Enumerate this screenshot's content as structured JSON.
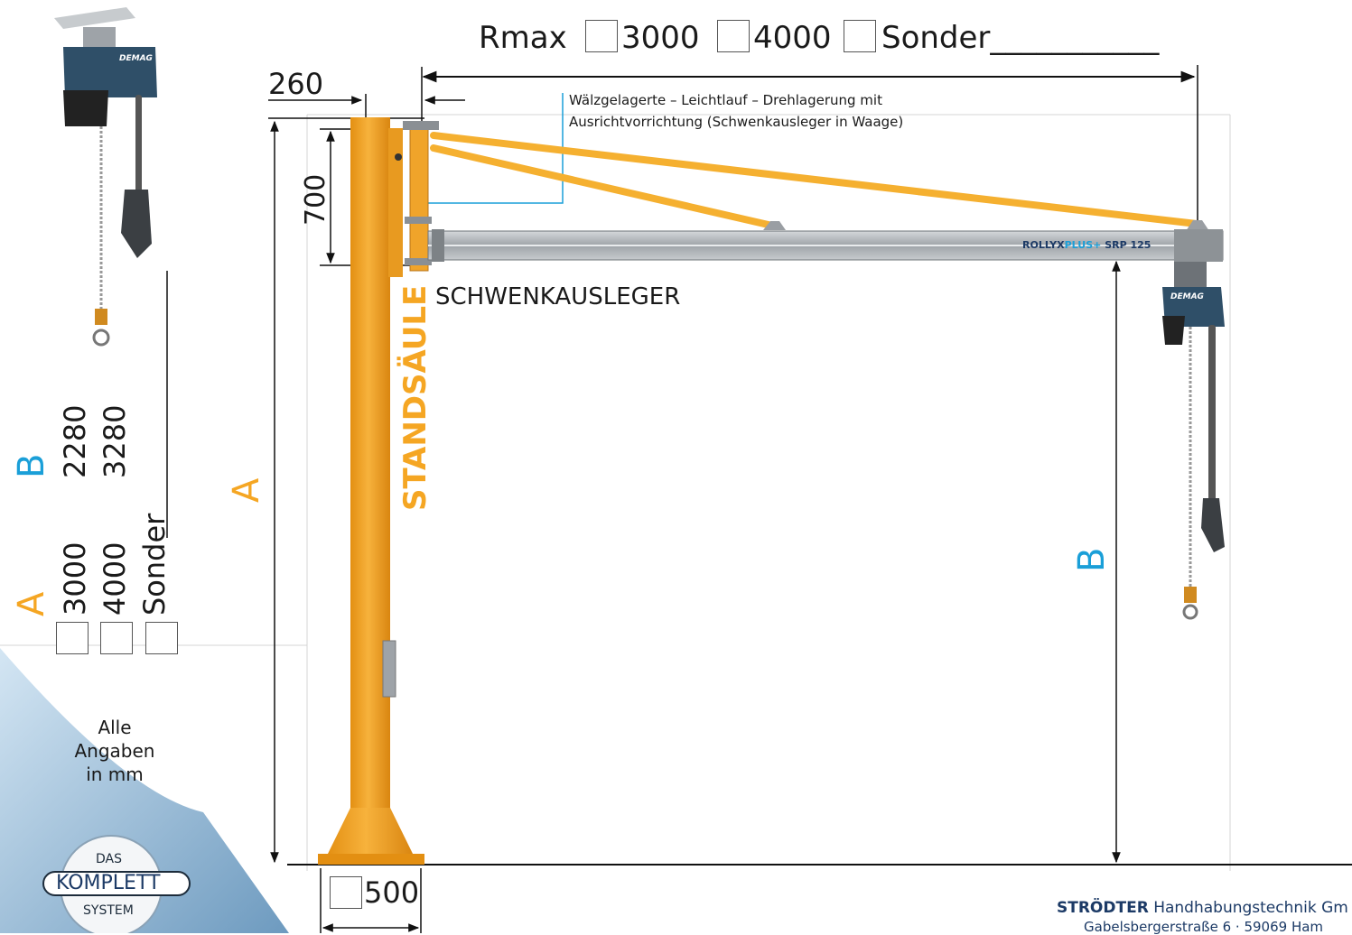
{
  "top_radius": {
    "label": "Rmax",
    "options": [
      "3000",
      "4000",
      "Sonder___________"
    ]
  },
  "dimensions": {
    "offset": "260",
    "bearing_height": "700",
    "base_width": "500"
  },
  "annotations": {
    "bearing_line1": "Wälzgelagerte – Leichtlauf – Drehlagerung mit",
    "bearing_line2": "Ausrichtvorrichtung (Schwenkausleger in Waage)",
    "jib_label": "SCHWENKAUSLEGER",
    "column_label": "STANDSÄULE",
    "dim_a": "A",
    "dim_b": "B"
  },
  "rail": {
    "brand_part1": "ROLLYX",
    "brand_part2": "PLUS+",
    "model": "SRP 125"
  },
  "hoist_brand": "DEMAG",
  "left_panel": {
    "a_label": "A",
    "a_values": [
      "3000",
      "4000",
      "Sonder"
    ],
    "b_label": "B",
    "b_values": [
      "2280",
      "3280"
    ],
    "note_line1": "Alle",
    "note_line2": "Angaben",
    "note_line3": "in mm"
  },
  "badge": {
    "top": "DAS",
    "middle": "KOMPLETT",
    "bottom": "SYSTEM"
  },
  "footer": {
    "company_bold": "STRÖDTER",
    "company_rest": " Handhabungstechnik Gm",
    "address": "Gabelsbergerstraße 6 · 59069 Ham"
  },
  "colors": {
    "column": "#f5a623",
    "column_dark": "#d98a10",
    "accent_blue": "#1a9fd8",
    "rail": "#b8bcc0",
    "hoist": "#2f4f68"
  }
}
